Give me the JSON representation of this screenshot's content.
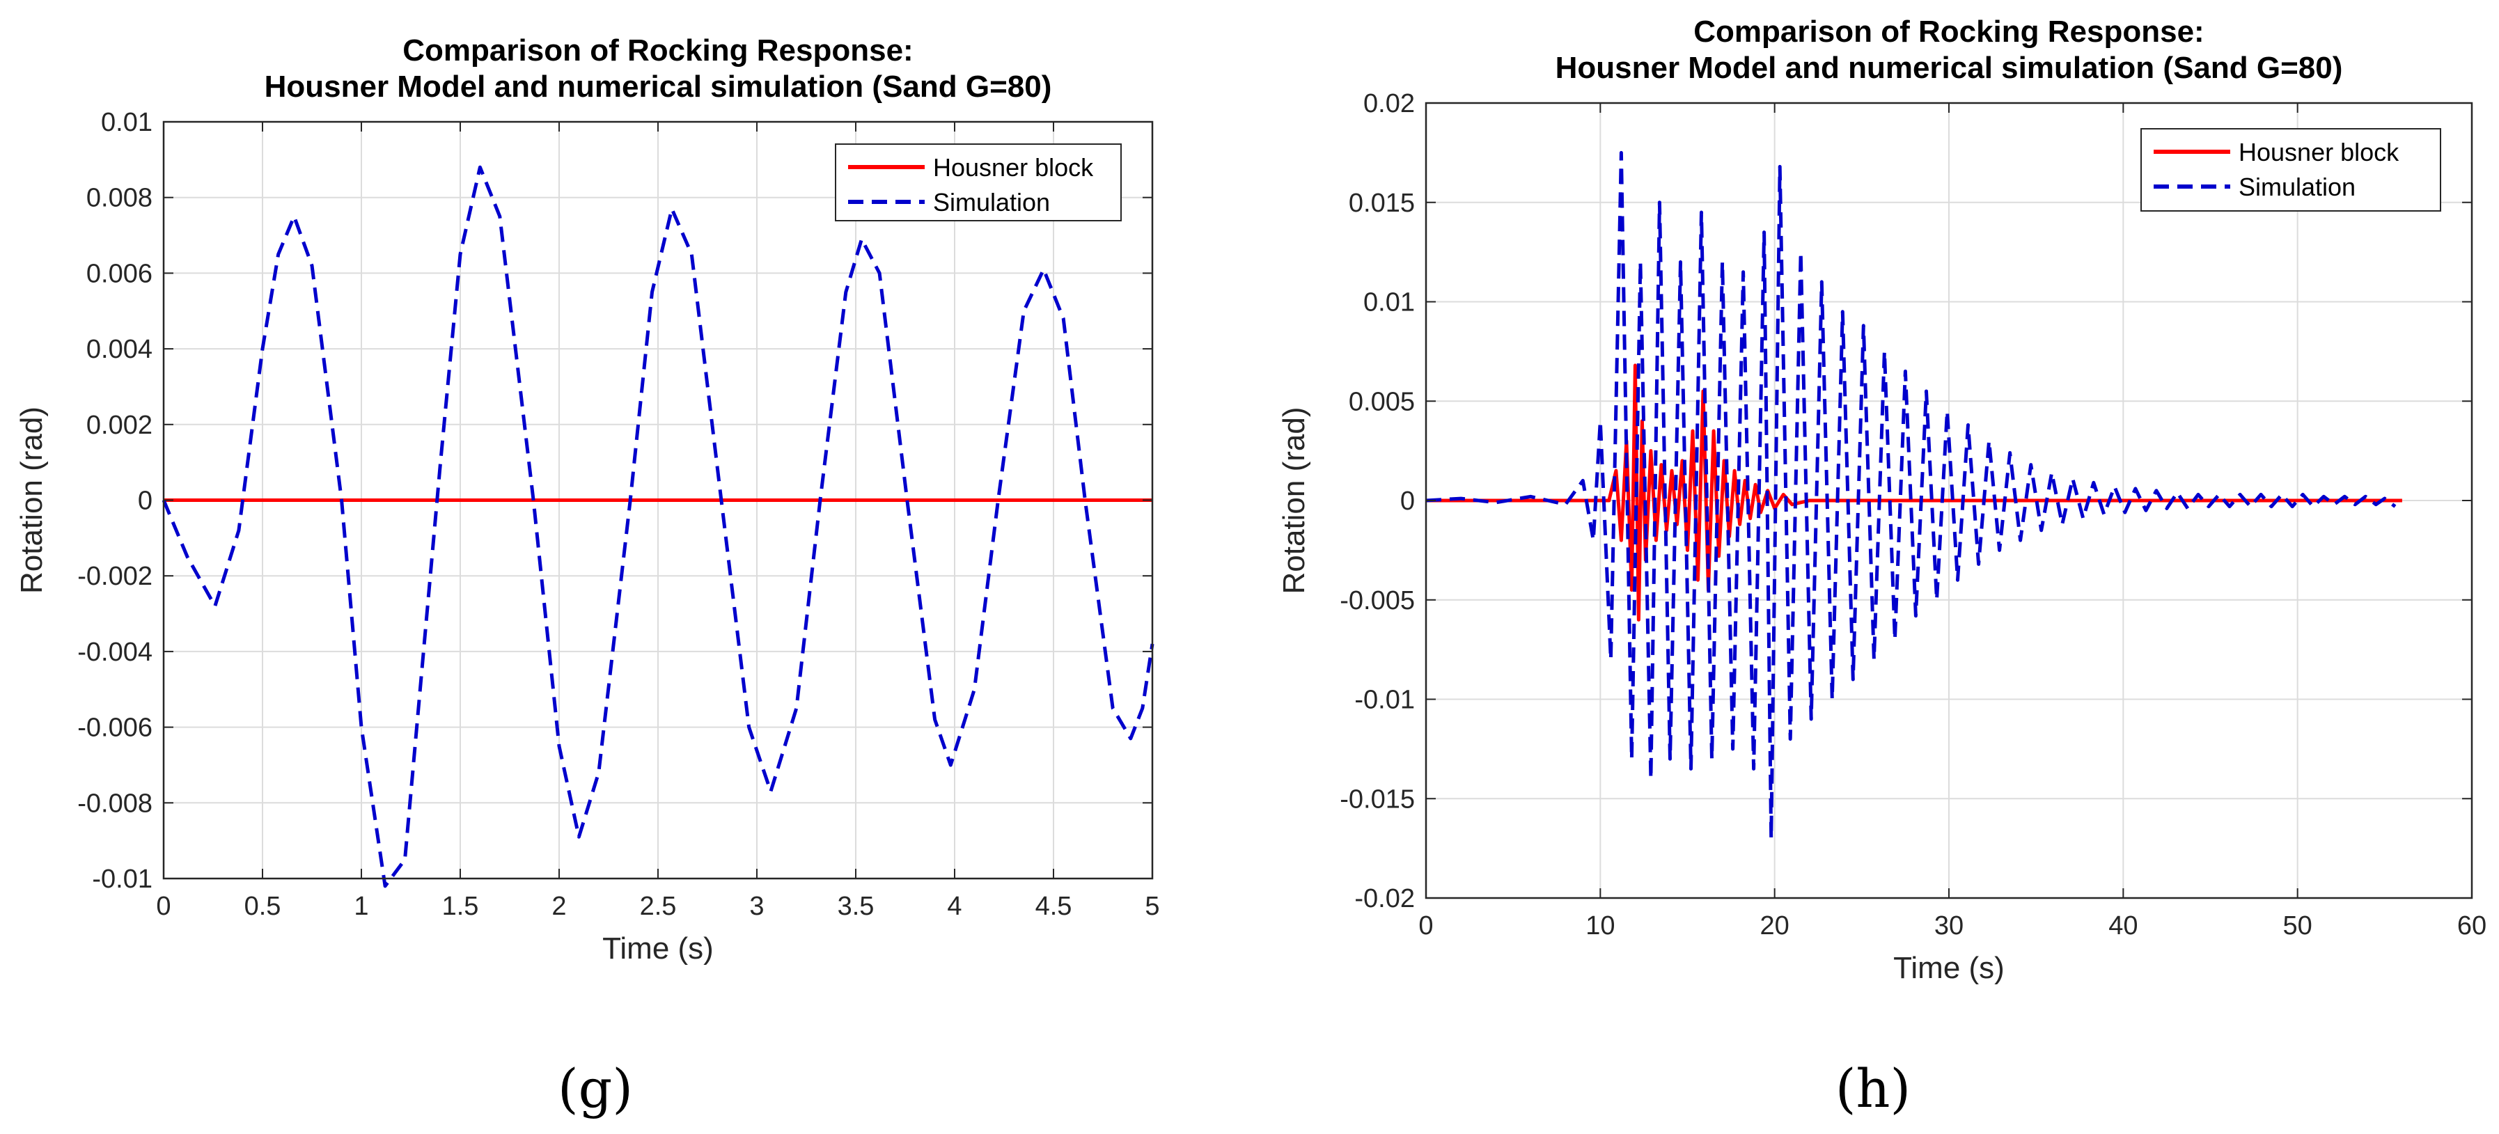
{
  "chart_data": [
    {
      "type": "line",
      "panel_label": "(g)",
      "title_lines": [
        "Comparison of Rocking Response:",
        "Housner Model and numerical simulation (Sand G=80)"
      ],
      "xlabel": "Time (s)",
      "ylabel": "Rotation (rad)",
      "xlim": [
        0,
        5
      ],
      "ylim": [
        -0.01,
        0.01
      ],
      "xticks": [
        0,
        0.5,
        1,
        1.5,
        2,
        2.5,
        3,
        3.5,
        4,
        4.5,
        5
      ],
      "xtick_labels": [
        "0",
        "0.5",
        "1",
        "1.5",
        "2",
        "2.5",
        "3",
        "3.5",
        "4",
        "4.5",
        "5"
      ],
      "yticks": [
        -0.01,
        -0.008,
        -0.006,
        -0.004,
        -0.002,
        0,
        0.002,
        0.004,
        0.006,
        0.008,
        0.01
      ],
      "ytick_labels": [
        "-0.01",
        "-0.008",
        "-0.006",
        "-0.004",
        "-0.002",
        "0",
        "0.002",
        "0.004",
        "0.006",
        "0.008",
        "0.01"
      ],
      "grid": true,
      "legend_position": "top-right",
      "series": [
        {
          "name": "Housner block",
          "color": "#ff0000",
          "dash": "solid",
          "points": [
            [
              0,
              0
            ],
            [
              5,
              0
            ]
          ]
        },
        {
          "name": "Simulation",
          "color": "#0000cc",
          "dash": "dashed",
          "points": [
            [
              0,
              0
            ],
            [
              0.12,
              -0.0015
            ],
            [
              0.26,
              -0.0028
            ],
            [
              0.38,
              -0.0008
            ],
            [
              0.5,
              0.004
            ],
            [
              0.58,
              0.0065
            ],
            [
              0.66,
              0.0075
            ],
            [
              0.75,
              0.0062
            ],
            [
              0.9,
              0.0
            ],
            [
              1.0,
              -0.006
            ],
            [
              1.12,
              -0.0102
            ],
            [
              1.22,
              -0.0095
            ],
            [
              1.4,
              0.001
            ],
            [
              1.5,
              0.0065
            ],
            [
              1.6,
              0.0088
            ],
            [
              1.7,
              0.0075
            ],
            [
              1.87,
              0.0
            ],
            [
              2.0,
              -0.0065
            ],
            [
              2.1,
              -0.0089
            ],
            [
              2.2,
              -0.0072
            ],
            [
              2.36,
              0.0
            ],
            [
              2.47,
              0.0055
            ],
            [
              2.57,
              0.0077
            ],
            [
              2.67,
              0.0065
            ],
            [
              2.82,
              0.0
            ],
            [
              2.96,
              -0.006
            ],
            [
              3.07,
              -0.0077
            ],
            [
              3.2,
              -0.0055
            ],
            [
              3.32,
              0.0
            ],
            [
              3.45,
              0.0055
            ],
            [
              3.53,
              0.0069
            ],
            [
              3.62,
              0.006
            ],
            [
              3.76,
              0.0
            ],
            [
              3.9,
              -0.0058
            ],
            [
              3.98,
              -0.007
            ],
            [
              4.1,
              -0.005
            ],
            [
              4.22,
              0.0
            ],
            [
              4.35,
              0.005
            ],
            [
              4.45,
              0.0061
            ],
            [
              4.55,
              0.0048
            ],
            [
              4.66,
              0.0
            ],
            [
              4.8,
              -0.0055
            ],
            [
              4.89,
              -0.0063
            ],
            [
              4.95,
              -0.0055
            ],
            [
              5.0,
              -0.0038
            ]
          ]
        }
      ]
    },
    {
      "type": "line",
      "panel_label": "(h)",
      "title_lines": [
        "Comparison of Rocking Response:",
        "Housner Model and numerical simulation (Sand G=80)"
      ],
      "xlabel": "Time (s)",
      "ylabel": "Rotation (rad)",
      "xlim": [
        0,
        60
      ],
      "ylim": [
        -0.02,
        0.02
      ],
      "xticks": [
        0,
        10,
        20,
        30,
        40,
        50,
        60
      ],
      "xtick_labels": [
        "0",
        "10",
        "20",
        "30",
        "40",
        "50",
        "60"
      ],
      "yticks": [
        -0.02,
        -0.015,
        -0.01,
        -0.005,
        0,
        0.005,
        0.01,
        0.015,
        0.02
      ],
      "ytick_labels": [
        "-0.02",
        "-0.015",
        "-0.01",
        "-0.005",
        "0",
        "0.005",
        "0.01",
        "0.015",
        "0.02"
      ],
      "grid": true,
      "legend_position": "top-right",
      "series": [
        {
          "name": "Housner block",
          "color": "#ff0000",
          "dash": "solid",
          "points": [
            [
              0,
              0
            ],
            [
              10.5,
              0
            ],
            [
              10.9,
              0.0015
            ],
            [
              11.2,
              -0.002
            ],
            [
              11.5,
              0.003
            ],
            [
              11.8,
              -0.0045
            ],
            [
              12.0,
              0.0068
            ],
            [
              12.2,
              -0.006
            ],
            [
              12.4,
              0.004
            ],
            [
              12.6,
              -0.003
            ],
            [
              12.9,
              0.0025
            ],
            [
              13.2,
              -0.002
            ],
            [
              13.5,
              0.0018
            ],
            [
              13.8,
              -0.0015
            ],
            [
              14.1,
              0.0015
            ],
            [
              14.4,
              -0.0012
            ],
            [
              14.7,
              0.002
            ],
            [
              15.0,
              -0.0025
            ],
            [
              15.3,
              0.0035
            ],
            [
              15.6,
              -0.004
            ],
            [
              15.9,
              0.0055
            ],
            [
              16.2,
              -0.0045
            ],
            [
              16.5,
              0.0035
            ],
            [
              16.8,
              -0.0028
            ],
            [
              17.1,
              0.002
            ],
            [
              17.4,
              -0.0018
            ],
            [
              17.7,
              0.0015
            ],
            [
              18.0,
              -0.0012
            ],
            [
              18.3,
              0.001
            ],
            [
              18.6,
              -0.0009
            ],
            [
              18.9,
              0.0008
            ],
            [
              19.2,
              -0.0006
            ],
            [
              19.6,
              0.0005
            ],
            [
              20.0,
              -0.0004
            ],
            [
              20.5,
              0.0003
            ],
            [
              21.0,
              -0.0002
            ],
            [
              22,
              0
            ],
            [
              56,
              0
            ]
          ]
        },
        {
          "name": "Simulation",
          "color": "#0000cc",
          "dash": "dashed",
          "points": [
            [
              0,
              0
            ],
            [
              2,
              0.0001
            ],
            [
              4,
              -0.0001
            ],
            [
              6,
              0.0002
            ],
            [
              8,
              -0.0002
            ],
            [
              9,
              0.001
            ],
            [
              9.6,
              -0.002
            ],
            [
              10.0,
              0.004
            ],
            [
              10.6,
              -0.008
            ],
            [
              11.2,
              0.0175
            ],
            [
              11.8,
              -0.013
            ],
            [
              12.3,
              0.012
            ],
            [
              12.9,
              -0.014
            ],
            [
              13.4,
              0.015
            ],
            [
              14.0,
              -0.013
            ],
            [
              14.6,
              0.012
            ],
            [
              15.2,
              -0.0135
            ],
            [
              15.8,
              0.0145
            ],
            [
              16.4,
              -0.013
            ],
            [
              17.0,
              0.012
            ],
            [
              17.6,
              -0.0125
            ],
            [
              18.2,
              0.0115
            ],
            [
              18.8,
              -0.0135
            ],
            [
              19.4,
              0.0135
            ],
            [
              19.8,
              -0.017
            ],
            [
              20.3,
              0.0168
            ],
            [
              20.9,
              -0.012
            ],
            [
              21.5,
              0.0125
            ],
            [
              22.1,
              -0.011
            ],
            [
              22.7,
              0.011
            ],
            [
              23.3,
              -0.01
            ],
            [
              23.9,
              0.0095
            ],
            [
              24.5,
              -0.009
            ],
            [
              25.1,
              0.0088
            ],
            [
              25.7,
              -0.008
            ],
            [
              26.3,
              0.0075
            ],
            [
              26.9,
              -0.007
            ],
            [
              27.5,
              0.0065
            ],
            [
              28.1,
              -0.0058
            ],
            [
              28.7,
              0.0055
            ],
            [
              29.3,
              -0.005
            ],
            [
              29.9,
              0.0045
            ],
            [
              30.5,
              -0.004
            ],
            [
              31.1,
              0.0038
            ],
            [
              31.7,
              -0.0032
            ],
            [
              32.3,
              0.003
            ],
            [
              32.9,
              -0.0025
            ],
            [
              33.5,
              0.0024
            ],
            [
              34.1,
              -0.002
            ],
            [
              34.7,
              0.0018
            ],
            [
              35.3,
              -0.0015
            ],
            [
              35.9,
              0.0014
            ],
            [
              36.5,
              -0.0012
            ],
            [
              37.1,
              0.0011
            ],
            [
              37.7,
              -0.0009
            ],
            [
              38.3,
              0.0009
            ],
            [
              38.9,
              -0.0007
            ],
            [
              39.5,
              0.0007
            ],
            [
              40.1,
              -0.0006
            ],
            [
              40.7,
              0.0006
            ],
            [
              41.3,
              -0.0005
            ],
            [
              41.9,
              0.0005
            ],
            [
              42.5,
              -0.0004
            ],
            [
              43.1,
              0.0004
            ],
            [
              43.7,
              -0.0004
            ],
            [
              44.3,
              0.0003
            ],
            [
              44.9,
              -0.0003
            ],
            [
              45.5,
              0.0003
            ],
            [
              46.1,
              -0.0003
            ],
            [
              46.7,
              0.0003
            ],
            [
              47.3,
              -0.0003
            ],
            [
              47.9,
              0.0003
            ],
            [
              48.5,
              -0.0003
            ],
            [
              49.1,
              0.0003
            ],
            [
              49.7,
              -0.0003
            ],
            [
              50.3,
              0.0003
            ],
            [
              50.9,
              -0.0003
            ],
            [
              51.5,
              0.0002
            ],
            [
              52.1,
              -0.0002
            ],
            [
              52.7,
              0.0002
            ],
            [
              53.3,
              -0.0002
            ],
            [
              53.9,
              0.0002
            ],
            [
              54.5,
              -0.0002
            ],
            [
              55.0,
              0.0001
            ],
            [
              55.6,
              -0.0003
            ]
          ]
        }
      ]
    }
  ]
}
